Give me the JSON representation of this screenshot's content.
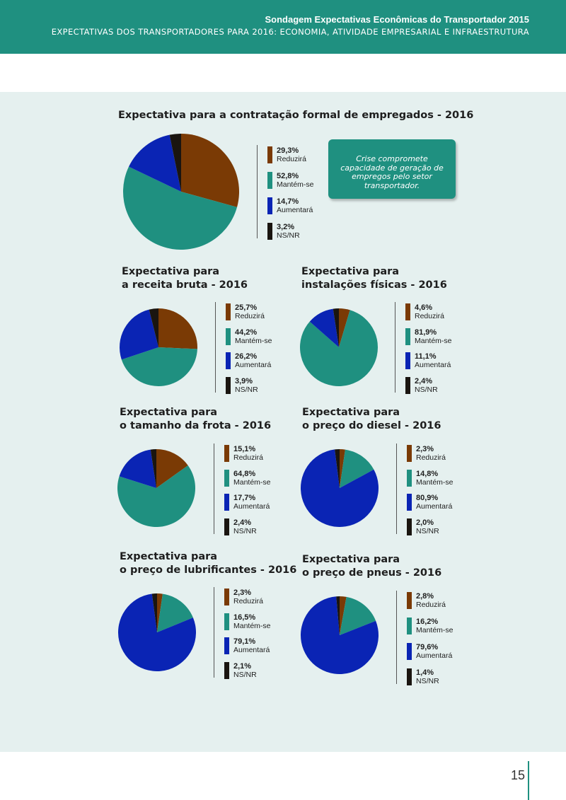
{
  "header": {
    "title": "Sondagem Expectativas Econômicas do Transportador 2015",
    "subtitle": "EXPECTATIVAS DOS TRANSPORTADORES PARA 2016: ECONOMIA, ATIVIDADE EMPRESARIAL E INFRAESTRUTURA"
  },
  "callout": "Crise compromete capacidade de geração de empregos pelo setor transportador.",
  "page_number": "15",
  "colors": {
    "Reduzirá": "#7a3a05",
    "Mantém-se": "#1f9080",
    "Aumentará": "#0a24b4",
    "NS/NR": "#1a1510",
    "header": "#1f9080",
    "panel": "#e5f0ef"
  },
  "chart_data": [
    {
      "id": "contratacao",
      "type": "pie",
      "title_lines": [
        "Expectativa para a contratação formal de empregados - 2016"
      ],
      "labels": [
        "Reduzirá",
        "Mantém-se",
        "Aumentará",
        "NS/NR"
      ],
      "values": [
        29.3,
        52.8,
        14.7,
        3.2
      ],
      "value_labels": [
        "29,3%",
        "52,8%",
        "14,7%",
        "3,2%"
      ]
    },
    {
      "id": "receita",
      "type": "pie",
      "title_lines": [
        "Expectativa para",
        "a receita bruta - 2016"
      ],
      "labels": [
        "Reduzirá",
        "Mantém-se",
        "Aumentará",
        "NS/NR"
      ],
      "values": [
        25.7,
        44.2,
        26.2,
        3.9
      ],
      "value_labels": [
        "25,7%",
        "44,2%",
        "26,2%",
        "3,9%"
      ]
    },
    {
      "id": "instalacoes",
      "type": "pie",
      "title_lines": [
        "Expectativa para",
        "instalações físicas - 2016"
      ],
      "labels": [
        "Reduzirá",
        "Mantém-se",
        "Aumentará",
        "NS/NR"
      ],
      "values": [
        4.6,
        81.9,
        11.1,
        2.4
      ],
      "value_labels": [
        "4,6%",
        "81,9%",
        "11,1%",
        "2,4%"
      ]
    },
    {
      "id": "frota",
      "type": "pie",
      "title_lines": [
        "Expectativa para",
        "o tamanho da frota - 2016"
      ],
      "labels": [
        "Reduzirá",
        "Mantém-se",
        "Aumentará",
        "NS/NR"
      ],
      "values": [
        15.1,
        64.8,
        17.7,
        2.4
      ],
      "value_labels": [
        "15,1%",
        "64,8%",
        "17,7%",
        "2,4%"
      ]
    },
    {
      "id": "diesel",
      "type": "pie",
      "title_lines": [
        "Expectativa para",
        "o preço do diesel - 2016"
      ],
      "labels": [
        "Reduzirá",
        "Mantém-se",
        "Aumentará",
        "NS/NR"
      ],
      "values": [
        2.3,
        14.8,
        80.9,
        2.0
      ],
      "value_labels": [
        "2,3%",
        "14,8%",
        "80,9%",
        "2,0%"
      ]
    },
    {
      "id": "lubrificantes",
      "type": "pie",
      "title_lines": [
        "Expectativa para",
        "o preço de lubrificantes - 2016"
      ],
      "labels": [
        "Reduzirá",
        "Mantém-se",
        "Aumentará",
        "NS/NR"
      ],
      "values": [
        2.3,
        16.5,
        79.1,
        2.1
      ],
      "value_labels": [
        "2,3%",
        "16,5%",
        "79,1%",
        "2,1%"
      ]
    },
    {
      "id": "pneus",
      "type": "pie",
      "title_lines": [
        "Expectativa para",
        "o preço de pneus - 2016"
      ],
      "labels": [
        "Reduzirá",
        "Mantém-se",
        "Aumentará",
        "NS/NR"
      ],
      "values": [
        2.8,
        16.2,
        79.6,
        1.4
      ],
      "value_labels": [
        "2,8%",
        "16,2%",
        "79,6%",
        "1,4%"
      ]
    }
  ]
}
